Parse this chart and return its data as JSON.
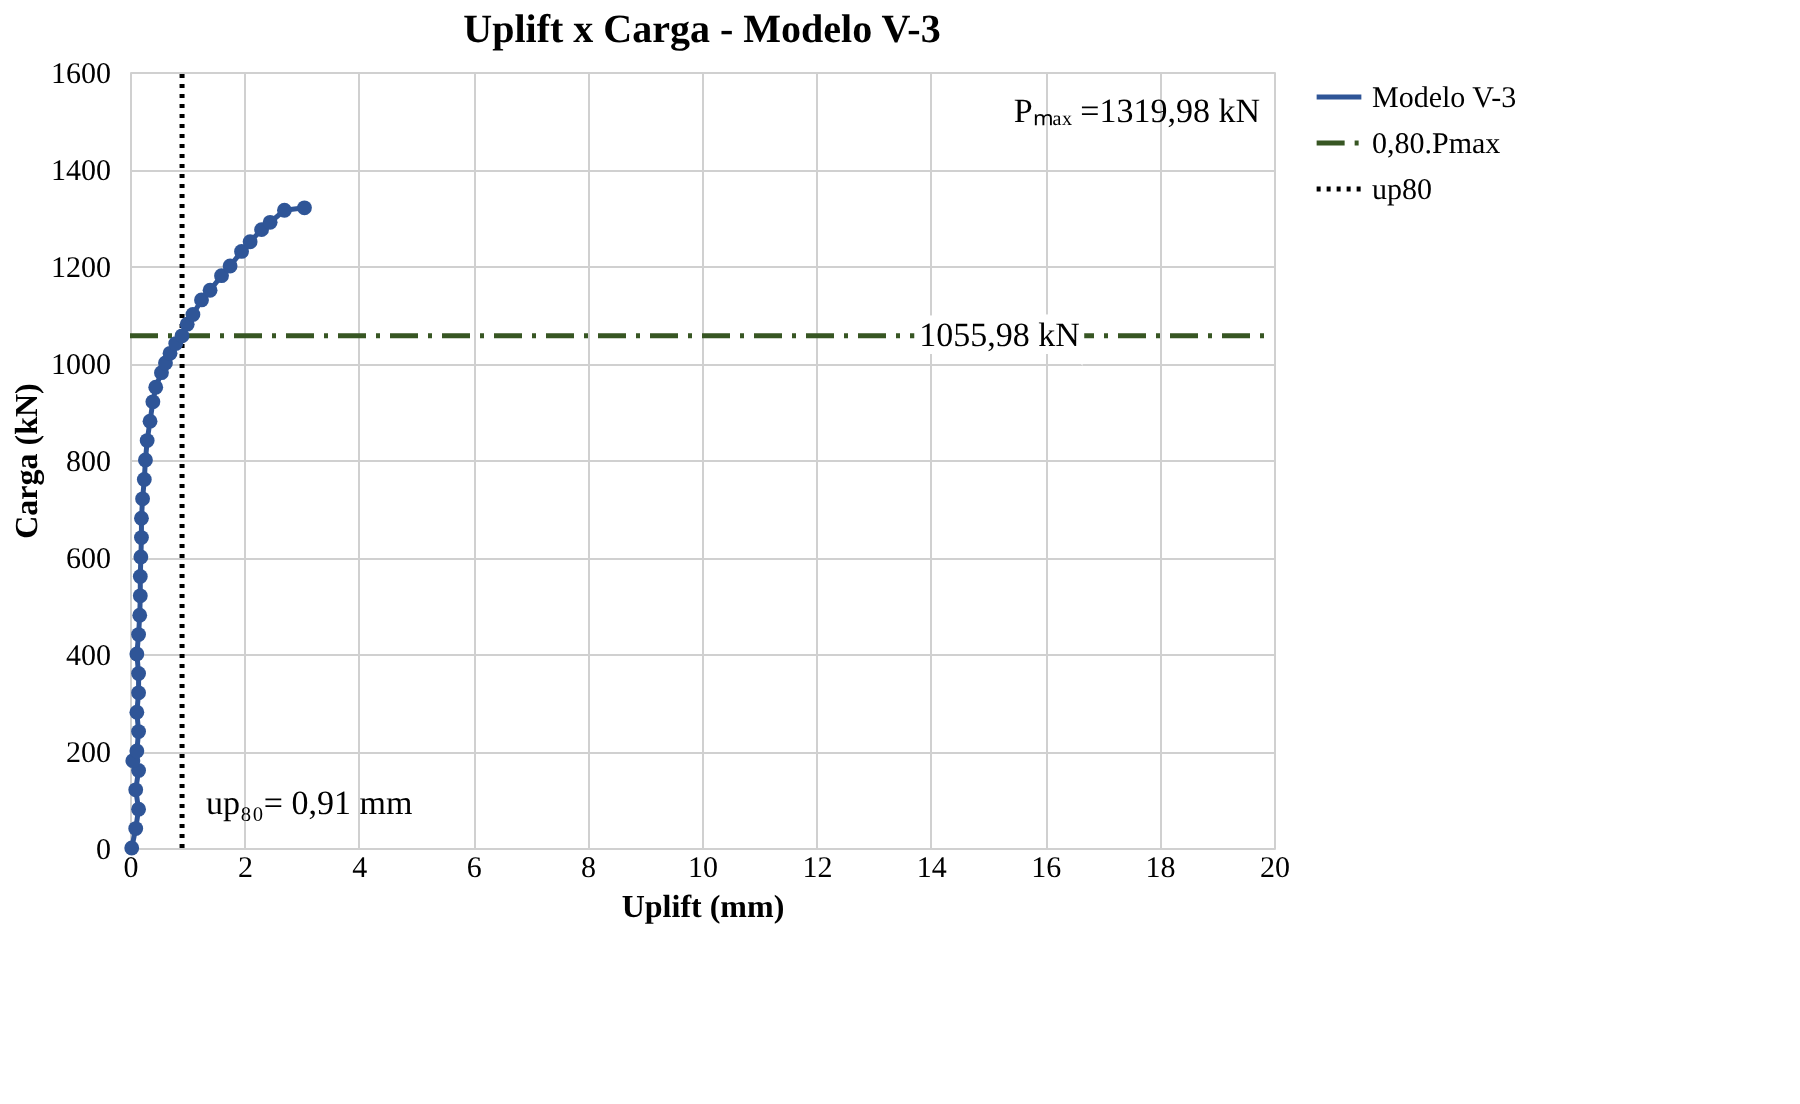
{
  "chart_data": {
    "type": "line",
    "title": "Uplift x Carga - Modelo V-3",
    "xlabel": "Uplift (mm)",
    "ylabel": "Carga (kN)",
    "xlim": [
      0,
      20
    ],
    "ylim": [
      0,
      1600
    ],
    "xticks": [
      0,
      2,
      4,
      6,
      8,
      10,
      12,
      14,
      16,
      18,
      20
    ],
    "yticks": [
      0,
      200,
      400,
      600,
      800,
      1000,
      1200,
      1400,
      1600
    ],
    "grid": true,
    "legend": "right",
    "series": [
      {
        "name": "Modelo V-3",
        "color": "#2f5597",
        "marker": "circle",
        "line_style": "solid",
        "x": [
          0.03,
          0.1,
          0.15,
          0.1,
          0.15,
          0.05,
          0.12,
          0.15,
          0.12,
          0.15,
          0.15,
          0.12,
          0.15,
          0.17,
          0.18,
          0.18,
          0.19,
          0.2,
          0.2,
          0.22,
          0.25,
          0.27,
          0.3,
          0.35,
          0.4,
          0.45,
          0.55,
          0.62,
          0.7,
          0.8,
          0.91,
          1.0,
          1.1,
          1.25,
          1.4,
          1.6,
          1.75,
          1.95,
          2.1,
          2.3,
          2.45,
          2.7,
          3.05
        ],
        "values": [
          0,
          40,
          80,
          120,
          160,
          180,
          200,
          240,
          280,
          320,
          360,
          400,
          440,
          480,
          520,
          560,
          600,
          640,
          680,
          720,
          760,
          800,
          840,
          880,
          920,
          950,
          980,
          1000,
          1020,
          1040,
          1056,
          1080,
          1100,
          1130,
          1150,
          1180,
          1200,
          1230,
          1250,
          1275,
          1290,
          1315,
          1320
        ]
      },
      {
        "name": "0,80.Pmax",
        "color": "#375623",
        "marker": "none",
        "line_style": "dashdot",
        "x": [
          0,
          20
        ],
        "values": [
          1055.98,
          1055.98
        ]
      },
      {
        "name": "up80",
        "color": "#000000",
        "marker": "none",
        "line_style": "dotted",
        "x": [
          0.91,
          0.91
        ],
        "values": [
          0,
          1600
        ]
      }
    ],
    "annotations": [
      "Pₘₐₓ =1319,98 kN",
      {
        "text": "1055,98 kN",
        "x": 15.2,
        "y": 1055.98
      },
      {
        "text": "up₈₀= 0,91 mm",
        "x": 0.91,
        "y": 90
      }
    ]
  }
}
